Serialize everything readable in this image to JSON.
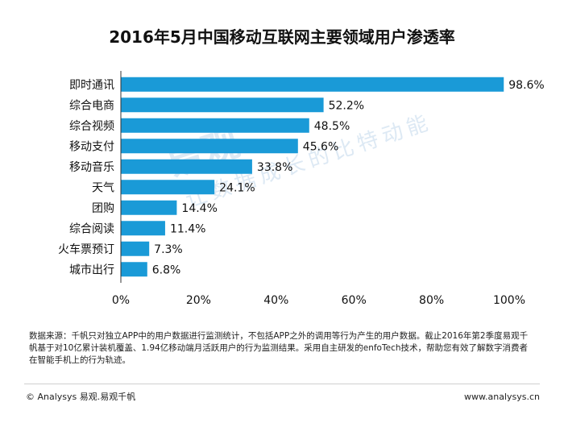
{
  "title": "2016年5月中国移动互联网主要领域用户渗透率",
  "colors": {
    "bar": "#1a9ad7",
    "axis": "#333333",
    "text": "#111111",
    "watermark": "#dde9f4"
  },
  "watermark": {
    "brand": "易观",
    "slogan": "让数据成长的比特动能",
    "logo_text": "Analysys"
  },
  "source_note": "数据来源：千帆只对独立APP中的用户数据进行监测统计，不包括APP之外的调用等行为产生的用户数据。截止2016年第2季度易观千帆基于对10亿累计装机覆盖、1.94亿移动端月活跃用户的行为监测结果。采用自主研发的enfoTech技术，帮助您有效了解数字消费者在智能手机上的行为轨迹。",
  "footer": {
    "copyright": "© Analysys 易观.易观千帆",
    "website": "www.analysys.cn"
  },
  "chart_data": {
    "type": "bar",
    "orientation": "horizontal",
    "title": "2016年5月中国移动互联网主要领域用户渗透率",
    "categories": [
      "即时通讯",
      "综合电商",
      "综合视频",
      "移动支付",
      "移动音乐",
      "天气",
      "团购",
      "综合阅读",
      "火车票预订",
      "城市出行"
    ],
    "values": [
      98.6,
      52.2,
      48.5,
      45.6,
      33.8,
      24.1,
      14.4,
      11.4,
      7.3,
      6.8
    ],
    "value_labels": [
      "98.6%",
      "52.2%",
      "48.5%",
      "45.6%",
      "33.8%",
      "24.1%",
      "14.4%",
      "11.4%",
      "7.3%",
      "6.8%"
    ],
    "xlim": [
      0,
      100
    ],
    "x_ticks": [
      0,
      20,
      40,
      60,
      80,
      100
    ],
    "x_tick_labels": [
      "0%",
      "20%",
      "40%",
      "60%",
      "80%",
      "100%"
    ],
    "xlabel": "",
    "ylabel": "",
    "grid": false,
    "legend": "none"
  }
}
